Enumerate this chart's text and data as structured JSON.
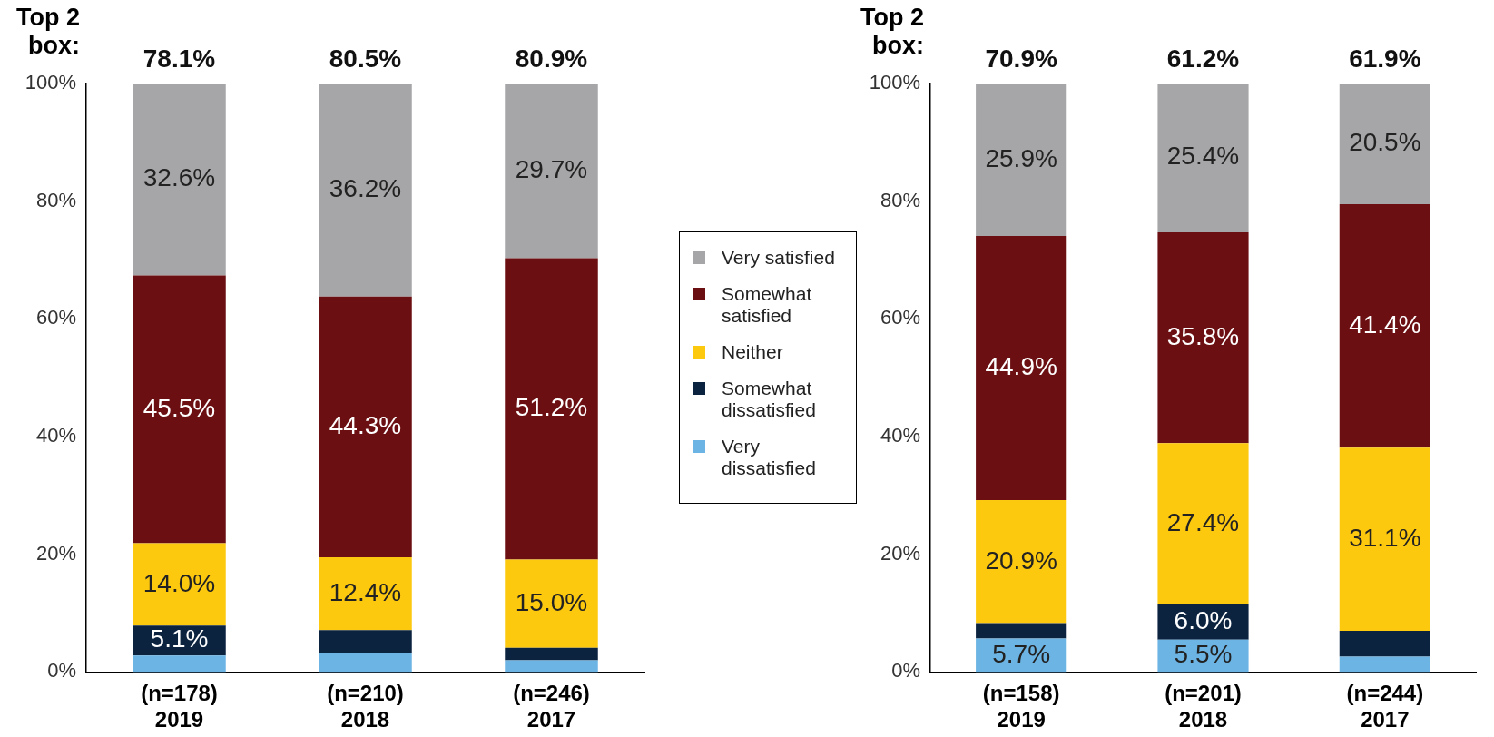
{
  "chart_data": [
    {
      "type": "bar",
      "title": "Top 2 box:",
      "stacked": true,
      "legend": "right",
      "categories": [
        [
          "(n=178)",
          "2019"
        ],
        [
          "(n=210)",
          "2018"
        ],
        [
          "(n=246)",
          "2017"
        ]
      ],
      "ylim": [
        0,
        100
      ],
      "yticks": [
        {
          "value": 0,
          "label": "0%"
        },
        {
          "value": 20,
          "label": "20%"
        },
        {
          "value": 40,
          "label": "40%"
        },
        {
          "value": 60,
          "label": "60%"
        },
        {
          "value": 80,
          "label": "80%"
        },
        {
          "value": 100,
          "label": "100%"
        }
      ],
      "grid": false,
      "annotations": [
        "78.1%",
        "80.5%",
        "80.9%"
      ],
      "series": [
        {
          "name": "Very dissatisfied",
          "color": "#6cb4e4",
          "values": [
            2.8,
            3.3,
            2.0
          ],
          "value_labels": [
            null,
            null,
            null
          ]
        },
        {
          "name": "Somewhat dissatisfied",
          "color": "#0c2340",
          "values": [
            5.1,
            3.8,
            2.1
          ],
          "value_labels": [
            "5.1%",
            null,
            null
          ]
        },
        {
          "name": "Neither",
          "color": "#fdc90f",
          "values": [
            14.0,
            12.4,
            15.0
          ],
          "value_labels": [
            "14.0%",
            "12.4%",
            "15.0%"
          ]
        },
        {
          "name": "Somewhat satisfied",
          "color": "#6b0f12",
          "values": [
            45.5,
            44.3,
            51.2
          ],
          "value_labels": [
            "45.5%",
            "44.3%",
            "51.2%"
          ]
        },
        {
          "name": "Very satisfied",
          "color": "#a6a6a8",
          "values": [
            32.6,
            36.2,
            29.7
          ],
          "value_labels": [
            "32.6%",
            "36.2%",
            "29.7%"
          ]
        }
      ]
    },
    {
      "type": "bar",
      "title": "Top 2 box:",
      "stacked": true,
      "categories": [
        [
          "(n=158)",
          "2019"
        ],
        [
          "(n=201)",
          "2018"
        ],
        [
          "(n=244)",
          "2017"
        ]
      ],
      "ylim": [
        0,
        100
      ],
      "yticks": [
        {
          "value": 0,
          "label": "0%"
        },
        {
          "value": 20,
          "label": "20%"
        },
        {
          "value": 40,
          "label": "40%"
        },
        {
          "value": 60,
          "label": "60%"
        },
        {
          "value": 80,
          "label": "80%"
        },
        {
          "value": 100,
          "label": "100%"
        }
      ],
      "grid": false,
      "annotations": [
        "70.9%",
        "61.2%",
        "61.9%"
      ],
      "series": [
        {
          "color": "#6cb4e4",
          "values": [
            5.7,
            5.5,
            2.6
          ],
          "value_labels": [
            "5.7%",
            "5.5%",
            null
          ]
        },
        {
          "color": "#0c2340",
          "values": [
            2.6,
            6.0,
            4.4
          ],
          "value_labels": [
            null,
            "6.0%",
            null
          ]
        },
        {
          "color": "#fdc90f",
          "values": [
            20.9,
            27.4,
            31.1
          ],
          "value_labels": [
            "20.9%",
            "27.4%",
            "31.1%"
          ]
        },
        {
          "color": "#6b0f12",
          "values": [
            44.9,
            35.8,
            41.4
          ],
          "value_labels": [
            "44.9%",
            "35.8%",
            "41.4%"
          ]
        },
        {
          "color": "#a6a6a8",
          "values": [
            25.9,
            25.4,
            20.5
          ],
          "value_labels": [
            "25.9%",
            "25.4%",
            "20.5%"
          ]
        }
      ]
    }
  ]
}
